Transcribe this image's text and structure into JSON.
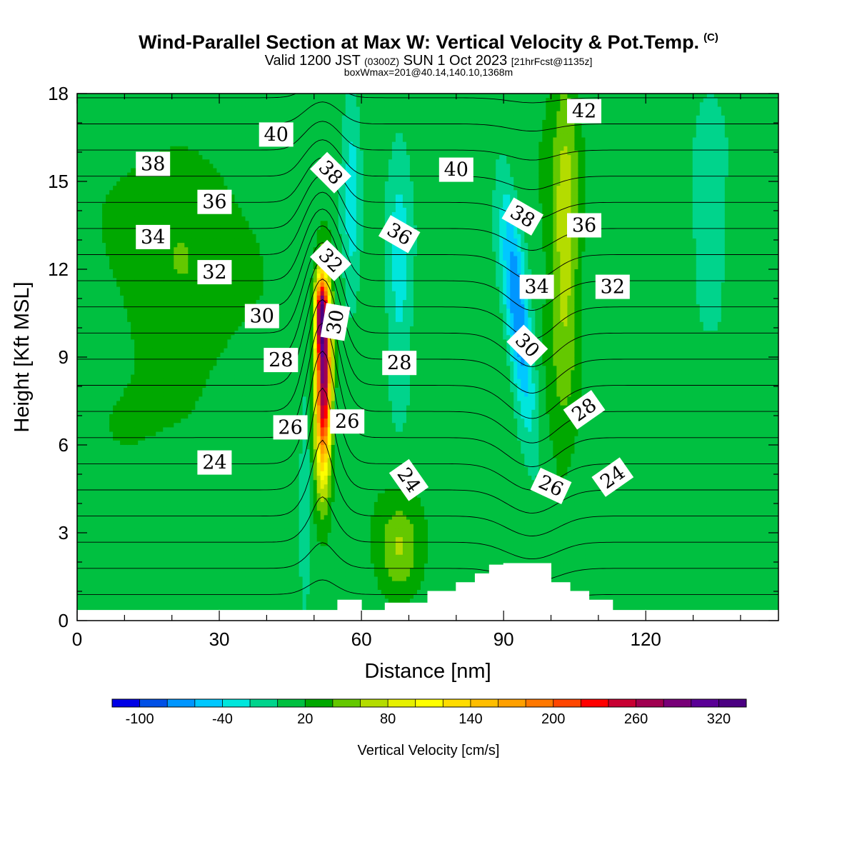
{
  "title": {
    "main": "Wind-Parallel Section at Max W: Vertical Velocity & Pot.Temp.",
    "copyright": "(C)",
    "valid_prefix": "Valid 1200 JST",
    "valid_z": "(0300Z)",
    "valid_date": "SUN 1 Oct 2023",
    "forecast": "[21hrFcst@1135z]",
    "box": "boxWmax=201@40.14,140.10,1368m"
  },
  "chart_data": {
    "type": "heatmap",
    "xlabel": "Distance [nm]",
    "ylabel": "Height [Kft MSL]",
    "xlim": [
      0,
      148
    ],
    "ylim": [
      0,
      18
    ],
    "x_ticks": [
      0,
      30,
      60,
      90,
      120
    ],
    "y_ticks": [
      0,
      3,
      6,
      9,
      12,
      15,
      18
    ],
    "terrain": [
      [
        0,
        0.35
      ],
      [
        55,
        0.35
      ],
      [
        55,
        0.7
      ],
      [
        60,
        0.7
      ],
      [
        60,
        0.35
      ],
      [
        65,
        0.35
      ],
      [
        65,
        0.6
      ],
      [
        74,
        0.6
      ],
      [
        74,
        1.0
      ],
      [
        80,
        1.0
      ],
      [
        80,
        1.3
      ],
      [
        84,
        1.3
      ],
      [
        84,
        1.6
      ],
      [
        87,
        1.6
      ],
      [
        87,
        1.9
      ],
      [
        90,
        1.9
      ],
      [
        90,
        1.95
      ],
      [
        100,
        1.95
      ],
      [
        100,
        1.3
      ],
      [
        104,
        1.3
      ],
      [
        104,
        1.0
      ],
      [
        108,
        1.0
      ],
      [
        108,
        0.7
      ],
      [
        113,
        0.7
      ],
      [
        113,
        0.35
      ],
      [
        148,
        0.35
      ]
    ],
    "colorbar": {
      "label": "Vertical Velocity [cm/s]",
      "min": -120,
      "max": 340,
      "step": 20,
      "tick_labels": [
        "-100",
        "-40",
        "20",
        "80",
        "140",
        "200",
        "260",
        "320"
      ],
      "colors": [
        "#0000e6",
        "#0050e6",
        "#0096ff",
        "#00c8ff",
        "#00e6dc",
        "#00d48c",
        "#00c040",
        "#00a800",
        "#64c800",
        "#b4dc00",
        "#e6f000",
        "#ffff00",
        "#ffdc00",
        "#ffbe00",
        "#ffa000",
        "#ff7800",
        "#ff4600",
        "#ff0000",
        "#c80032",
        "#a00050",
        "#780078",
        "#5a0096",
        "#4b0082"
      ]
    },
    "updrafts": [
      {
        "x": 52,
        "z_peak": 8.2,
        "w_peak": 280,
        "x_half_width": 1.6,
        "z_half_depth": 3.2
      },
      {
        "x": 51.5,
        "z_peak": 10.5,
        "w_peak": 190,
        "x_half_width": 1.2,
        "z_half_depth": 1.2
      },
      {
        "x": 103,
        "z_peak": 13,
        "w_peak": 60,
        "x_half_width": 3,
        "z_half_depth": 6
      },
      {
        "x": 68,
        "z_peak": 2.5,
        "w_peak": 45,
        "x_half_width": 4,
        "z_half_depth": 1.5
      },
      {
        "x": 22,
        "z_peak": 12,
        "w_peak": 30,
        "x_half_width": 10,
        "z_half_depth": 5
      }
    ],
    "downdrafts": [
      {
        "x": 93,
        "z_peak": 10.5,
        "w_min": -95,
        "x_half_width": 2.5,
        "z_half_depth": 4
      },
      {
        "x": 68,
        "z_peak": 12,
        "w_min": -45,
        "x_half_width": 3,
        "z_half_depth": 5
      },
      {
        "x": 58,
        "z_peak": 14.5,
        "w_min": -40,
        "x_half_width": 2,
        "z_half_depth": 4
      },
      {
        "x": 133,
        "z_peak": 14,
        "w_min": -30,
        "x_half_width": 4,
        "z_half_depth": 4
      },
      {
        "x": 48,
        "z_peak": 4,
        "w_min": -30,
        "x_half_width": 1,
        "z_half_depth": 3
      }
    ],
    "theta_contours": {
      "interval": 1,
      "labels": [
        {
          "text": "40",
          "x": 42,
          "y": 16.6,
          "rot": 0
        },
        {
          "text": "38",
          "x": 16,
          "y": 15.6,
          "rot": 0
        },
        {
          "text": "36",
          "x": 29,
          "y": 14.3,
          "rot": 0
        },
        {
          "text": "34",
          "x": 16,
          "y": 13.1,
          "rot": 0
        },
        {
          "text": "32",
          "x": 29,
          "y": 11.9,
          "rot": 0
        },
        {
          "text": "30",
          "x": 39,
          "y": 10.4,
          "rot": 0
        },
        {
          "text": "28",
          "x": 43,
          "y": 8.9,
          "rot": 0
        },
        {
          "text": "26",
          "x": 45,
          "y": 6.6,
          "rot": 0
        },
        {
          "text": "24",
          "x": 29,
          "y": 5.4,
          "rot": 0
        },
        {
          "text": "38",
          "x": 53.5,
          "y": 15.3,
          "rot": 45
        },
        {
          "text": "32",
          "x": 53.5,
          "y": 12.3,
          "rot": 45
        },
        {
          "text": "30",
          "x": 54.5,
          "y": 10.2,
          "rot": -80
        },
        {
          "text": "26",
          "x": 57,
          "y": 6.8,
          "rot": 0
        },
        {
          "text": "36",
          "x": 68,
          "y": 13.2,
          "rot": 30
        },
        {
          "text": "28",
          "x": 68,
          "y": 8.8,
          "rot": 0
        },
        {
          "text": "24",
          "x": 70,
          "y": 4.8,
          "rot": 55
        },
        {
          "text": "40",
          "x": 80,
          "y": 15.4,
          "rot": 0
        },
        {
          "text": "38",
          "x": 94,
          "y": 13.8,
          "rot": 30
        },
        {
          "text": "34",
          "x": 97,
          "y": 11.4,
          "rot": 0
        },
        {
          "text": "30",
          "x": 95,
          "y": 9.4,
          "rot": 45
        },
        {
          "text": "26",
          "x": 100,
          "y": 4.6,
          "rot": 25
        },
        {
          "text": "42",
          "x": 107,
          "y": 17.4,
          "rot": 0
        },
        {
          "text": "36",
          "x": 107,
          "y": 13.5,
          "rot": 0
        },
        {
          "text": "32",
          "x": 113,
          "y": 11.4,
          "rot": 0
        },
        {
          "text": "28",
          "x": 107,
          "y": 7.2,
          "rot": -35
        },
        {
          "text": "24",
          "x": 113,
          "y": 4.9,
          "rot": -35
        }
      ]
    }
  }
}
